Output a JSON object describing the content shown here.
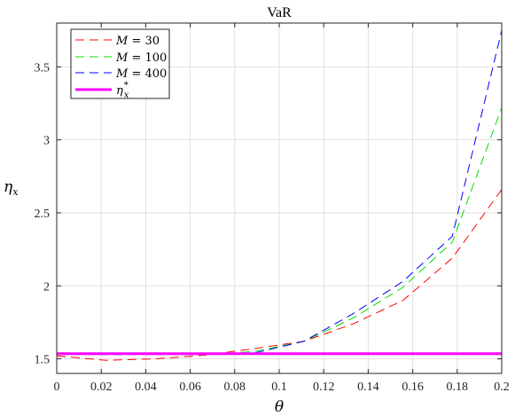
{
  "chart_data": {
    "type": "line",
    "title": "VaR",
    "xlabel": "θ",
    "ylabel": {
      "base": "η",
      "sub": "x"
    },
    "xlim": [
      0,
      0.2
    ],
    "ylim": [
      1.4,
      3.8
    ],
    "x_ticks": [
      "0",
      "0.02",
      "0.04",
      "0.06",
      "0.08",
      "0.1",
      "0.12",
      "0.14",
      "0.16",
      "0.18",
      "0.2"
    ],
    "y_ticks": [
      "1.5",
      "2",
      "2.5",
      "3",
      "3.5"
    ],
    "grid": true,
    "legend_position": "top-left",
    "x": [
      0,
      0.0222,
      0.0444,
      0.0667,
      0.0889,
      0.1111,
      0.1333,
      0.1556,
      0.1778,
      0.2
    ],
    "series": [
      {
        "label": {
          "var": "M",
          "rest": " = 30"
        },
        "color": "#ff0000",
        "style": "dashed",
        "values": [
          1.52,
          1.49,
          1.5,
          1.525,
          1.57,
          1.62,
          1.74,
          1.9,
          2.19,
          2.66
        ]
      },
      {
        "label": {
          "var": "M",
          "rest": " = 100"
        },
        "color": "#00e000",
        "style": "dashed",
        "values": [
          1.53,
          1.53,
          1.53,
          1.53,
          1.55,
          1.62,
          1.78,
          1.99,
          2.3,
          3.22
        ]
      },
      {
        "label": {
          "var": "M",
          "rest": " = 400"
        },
        "color": "#0000ff",
        "style": "dashed",
        "values": [
          1.53,
          1.53,
          1.53,
          1.53,
          1.54,
          1.62,
          1.81,
          2.03,
          2.34,
          3.75
        ]
      },
      {
        "label": {
          "var": "η",
          "sub": "x",
          "sup": "*"
        },
        "color": "#ff00ff",
        "style": "solid",
        "values": [
          1.535,
          1.535,
          1.535,
          1.535,
          1.535,
          1.535,
          1.535,
          1.535,
          1.535,
          1.535
        ]
      }
    ]
  }
}
